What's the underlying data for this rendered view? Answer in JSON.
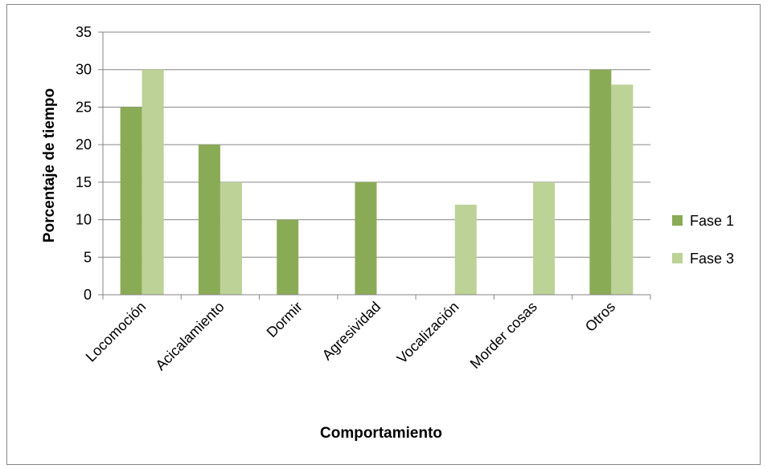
{
  "chart_data": {
    "type": "bar",
    "title": "",
    "xlabel": "Comportamiento",
    "ylabel": "Porcentaje de tiempo",
    "categories": [
      "Locomoción",
      "Acicalamiento",
      "Dormir",
      "Agresividad",
      "Vocalización",
      "Morder cosas",
      "Otros"
    ],
    "series": [
      {
        "name": "Fase 1",
        "color": "#8aab55",
        "values": [
          25,
          20,
          10,
          15,
          0,
          0,
          30
        ]
      },
      {
        "name": "Fase 3",
        "color": "#bcd296",
        "values": [
          30,
          15,
          0,
          0,
          12,
          15,
          28
        ]
      }
    ],
    "ylim": [
      0,
      35
    ],
    "yticks": [
      0,
      5,
      10,
      15,
      20,
      25,
      30,
      35
    ],
    "grid": true,
    "legend": "right"
  }
}
